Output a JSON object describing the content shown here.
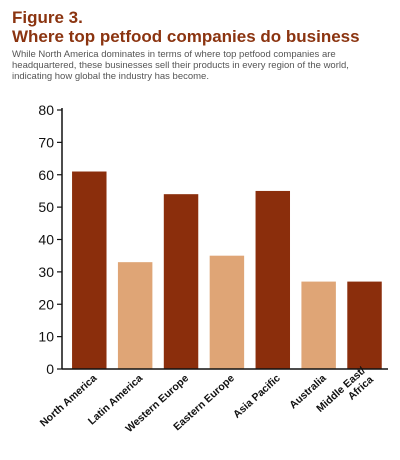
{
  "header": {
    "figure_label": "Figure 3.",
    "title": "Where top petfood companies do business",
    "caption": "While North America dominates in terms of where top petfood companies are headquartered, these businesses sell their products in every region of the world, indicating how global the industry has become."
  },
  "chart_data": {
    "type": "bar",
    "title": "Where top petfood companies do business",
    "xlabel": "",
    "ylabel": "",
    "categories": [
      "North America",
      "Latin America",
      "Western Europe",
      "Eastern Europe",
      "Asia Pacific",
      "Australia",
      "Middle East/\nAfrica"
    ],
    "values": [
      61,
      33,
      54,
      35,
      55,
      27,
      27
    ],
    "ylim": [
      0,
      80
    ],
    "yticks": [
      0,
      10,
      20,
      30,
      40,
      50,
      60,
      70,
      80
    ],
    "grid": false,
    "legend": "none",
    "colors": {
      "dark": "#8b2e0c",
      "light": "#dfa576",
      "bar_pattern": [
        "dark",
        "light",
        "dark",
        "light",
        "dark",
        "light",
        "dark"
      ]
    }
  }
}
